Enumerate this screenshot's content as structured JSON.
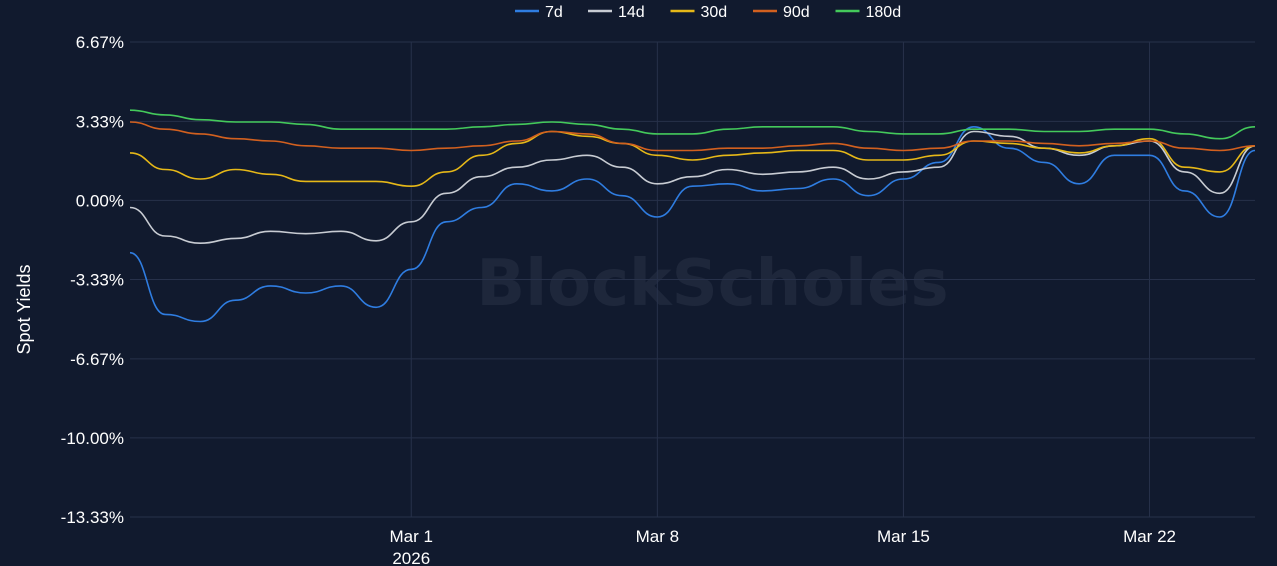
{
  "chart_data": {
    "type": "line",
    "ylabel": "Spot Yields",
    "watermark": "BlockScholes",
    "ylim": [
      -13.33,
      6.67
    ],
    "yticks": [
      {
        "value": 6.67,
        "label": "6.67%"
      },
      {
        "value": 3.33,
        "label": "3.33%"
      },
      {
        "value": 0.0,
        "label": "0.00%"
      },
      {
        "value": -3.33,
        "label": "-3.33%"
      },
      {
        "value": -6.67,
        "label": "-6.67%"
      },
      {
        "value": -10.0,
        "label": "-10.00%"
      },
      {
        "value": -13.33,
        "label": "-13.33%"
      }
    ],
    "xlim": [
      "2026-02-21",
      "2026-03-25"
    ],
    "xticks": [
      {
        "value": "2026-03-01",
        "label": "Mar 1",
        "sublabel": "2026"
      },
      {
        "value": "2026-03-08",
        "label": "Mar 8",
        "sublabel": ""
      },
      {
        "value": "2026-03-15",
        "label": "Mar 15",
        "sublabel": ""
      },
      {
        "value": "2026-03-22",
        "label": "Mar 22",
        "sublabel": ""
      }
    ],
    "legend_position": "top-center",
    "series": [
      {
        "name": "7d",
        "color": "#2f7de1",
        "x": [
          "2026-02-21",
          "2026-02-22",
          "2026-02-23",
          "2026-02-24",
          "2026-02-25",
          "2026-02-26",
          "2026-02-27",
          "2026-02-28",
          "2026-03-01",
          "2026-03-02",
          "2026-03-03",
          "2026-03-04",
          "2026-03-05",
          "2026-03-06",
          "2026-03-07",
          "2026-03-08",
          "2026-03-09",
          "2026-03-10",
          "2026-03-11",
          "2026-03-12",
          "2026-03-13",
          "2026-03-14",
          "2026-03-15",
          "2026-03-16",
          "2026-03-17",
          "2026-03-18",
          "2026-03-19",
          "2026-03-20",
          "2026-03-21",
          "2026-03-22",
          "2026-03-23",
          "2026-03-24",
          "2026-03-25"
        ],
        "y": [
          -2.2,
          -4.8,
          -5.1,
          -4.2,
          -3.6,
          -3.9,
          -3.6,
          -4.5,
          -2.9,
          -0.9,
          -0.3,
          0.7,
          0.4,
          0.9,
          0.2,
          -0.7,
          0.6,
          0.7,
          0.4,
          0.5,
          0.9,
          0.2,
          0.9,
          1.6,
          3.1,
          2.2,
          1.6,
          0.7,
          1.9,
          1.9,
          0.4,
          -0.7,
          2.1
        ]
      },
      {
        "name": "14d",
        "color": "#c8ccd3",
        "x": [
          "2026-02-21",
          "2026-02-22",
          "2026-02-23",
          "2026-02-24",
          "2026-02-25",
          "2026-02-26",
          "2026-02-27",
          "2026-02-28",
          "2026-03-01",
          "2026-03-02",
          "2026-03-03",
          "2026-03-04",
          "2026-03-05",
          "2026-03-06",
          "2026-03-07",
          "2026-03-08",
          "2026-03-09",
          "2026-03-10",
          "2026-03-11",
          "2026-03-12",
          "2026-03-13",
          "2026-03-14",
          "2026-03-15",
          "2026-03-16",
          "2026-03-17",
          "2026-03-18",
          "2026-03-19",
          "2026-03-20",
          "2026-03-21",
          "2026-03-22",
          "2026-03-23",
          "2026-03-24",
          "2026-03-25"
        ],
        "y": [
          -0.3,
          -1.5,
          -1.8,
          -1.6,
          -1.3,
          -1.4,
          -1.3,
          -1.7,
          -0.9,
          0.3,
          1.0,
          1.4,
          1.7,
          1.9,
          1.4,
          0.7,
          1.0,
          1.3,
          1.1,
          1.2,
          1.4,
          0.9,
          1.2,
          1.4,
          2.9,
          2.7,
          2.2,
          1.9,
          2.3,
          2.5,
          1.2,
          0.3,
          2.3
        ]
      },
      {
        "name": "30d",
        "color": "#e6b818",
        "x": [
          "2026-02-21",
          "2026-02-22",
          "2026-02-23",
          "2026-02-24",
          "2026-02-25",
          "2026-02-26",
          "2026-02-27",
          "2026-02-28",
          "2026-03-01",
          "2026-03-02",
          "2026-03-03",
          "2026-03-04",
          "2026-03-05",
          "2026-03-06",
          "2026-03-07",
          "2026-03-08",
          "2026-03-09",
          "2026-03-10",
          "2026-03-11",
          "2026-03-12",
          "2026-03-13",
          "2026-03-14",
          "2026-03-15",
          "2026-03-16",
          "2026-03-17",
          "2026-03-18",
          "2026-03-19",
          "2026-03-20",
          "2026-03-21",
          "2026-03-22",
          "2026-03-23",
          "2026-03-24",
          "2026-03-25"
        ],
        "y": [
          2.0,
          1.3,
          0.9,
          1.3,
          1.1,
          0.8,
          0.8,
          0.8,
          0.6,
          1.2,
          1.9,
          2.4,
          2.9,
          2.7,
          2.4,
          1.9,
          1.7,
          1.9,
          2.0,
          2.1,
          2.1,
          1.7,
          1.7,
          1.9,
          2.5,
          2.4,
          2.2,
          2.0,
          2.3,
          2.6,
          1.4,
          1.2,
          2.3
        ]
      },
      {
        "name": "90d",
        "color": "#d2601f",
        "x": [
          "2026-02-21",
          "2026-02-22",
          "2026-02-23",
          "2026-02-24",
          "2026-02-25",
          "2026-02-26",
          "2026-02-27",
          "2026-02-28",
          "2026-03-01",
          "2026-03-02",
          "2026-03-03",
          "2026-03-04",
          "2026-03-05",
          "2026-03-06",
          "2026-03-07",
          "2026-03-08",
          "2026-03-09",
          "2026-03-10",
          "2026-03-11",
          "2026-03-12",
          "2026-03-13",
          "2026-03-14",
          "2026-03-15",
          "2026-03-16",
          "2026-03-17",
          "2026-03-18",
          "2026-03-19",
          "2026-03-20",
          "2026-03-21",
          "2026-03-22",
          "2026-03-23",
          "2026-03-24",
          "2026-03-25"
        ],
        "y": [
          3.3,
          3.0,
          2.8,
          2.6,
          2.5,
          2.3,
          2.2,
          2.2,
          2.1,
          2.2,
          2.3,
          2.5,
          2.9,
          2.8,
          2.4,
          2.1,
          2.1,
          2.2,
          2.2,
          2.3,
          2.4,
          2.2,
          2.1,
          2.2,
          2.5,
          2.5,
          2.4,
          2.3,
          2.4,
          2.5,
          2.2,
          2.1,
          2.3
        ]
      },
      {
        "name": "180d",
        "color": "#44c95b",
        "x": [
          "2026-02-21",
          "2026-02-22",
          "2026-02-23",
          "2026-02-24",
          "2026-02-25",
          "2026-02-26",
          "2026-02-27",
          "2026-02-28",
          "2026-03-01",
          "2026-03-02",
          "2026-03-03",
          "2026-03-04",
          "2026-03-05",
          "2026-03-06",
          "2026-03-07",
          "2026-03-08",
          "2026-03-09",
          "2026-03-10",
          "2026-03-11",
          "2026-03-12",
          "2026-03-13",
          "2026-03-14",
          "2026-03-15",
          "2026-03-16",
          "2026-03-17",
          "2026-03-18",
          "2026-03-19",
          "2026-03-20",
          "2026-03-21",
          "2026-03-22",
          "2026-03-23",
          "2026-03-24",
          "2026-03-25"
        ],
        "y": [
          3.8,
          3.6,
          3.4,
          3.3,
          3.3,
          3.2,
          3.0,
          3.0,
          3.0,
          3.0,
          3.1,
          3.2,
          3.3,
          3.2,
          3.0,
          2.8,
          2.8,
          3.0,
          3.1,
          3.1,
          3.1,
          2.9,
          2.8,
          2.8,
          3.0,
          3.0,
          2.9,
          2.9,
          3.0,
          3.0,
          2.8,
          2.6,
          3.1
        ]
      }
    ]
  }
}
